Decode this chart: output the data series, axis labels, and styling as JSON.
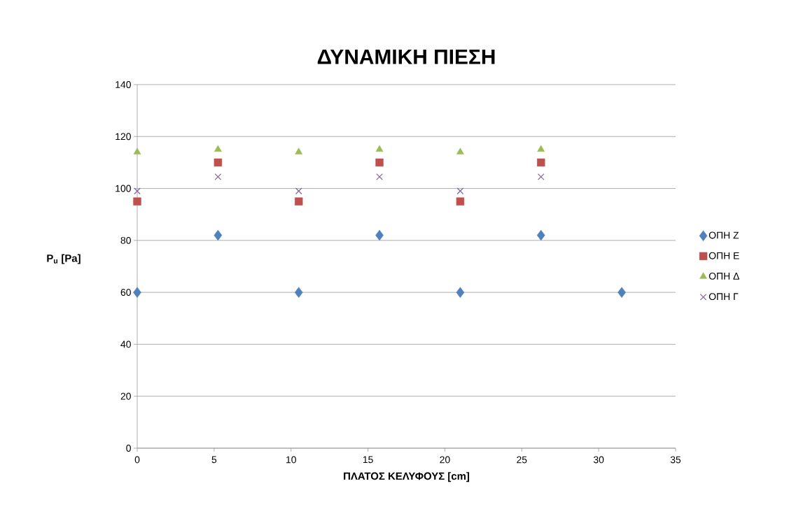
{
  "chart_data": {
    "type": "scatter",
    "title": "ΔΥΝΑΜΙΚΗ ΠΙΕΣΗ",
    "xlabel": "ΠΛΑΤΟΣ ΚΕΛΥΦΟΥΣ [cm]",
    "ylabel": "P$_{u}$ [Pa]",
    "xlim": [
      0,
      35
    ],
    "xticks": [
      0,
      5,
      10,
      15,
      20,
      25,
      30,
      35
    ],
    "ylim": [
      0,
      140
    ],
    "yticks": [
      0,
      20,
      40,
      60,
      80,
      100,
      120,
      140
    ],
    "grid": "y",
    "legend": "right",
    "series": [
      {
        "name": "ΟΠΗ Ζ",
        "color": "#4f81bd",
        "marker": "diamond",
        "x": [
          0,
          5.25,
          10.5,
          15.75,
          21,
          26.25,
          31.5
        ],
        "values": [
          60,
          82,
          60,
          82,
          60,
          82,
          60
        ]
      },
      {
        "name": "ΟΠΗ Ε",
        "color": "#c0504d",
        "marker": "square",
        "x": [
          0,
          5.25,
          10.5,
          15.75,
          21,
          26.25
        ],
        "values": [
          95,
          110,
          95,
          110,
          95,
          110
        ]
      },
      {
        "name": "ΟΠΗ Δ",
        "color": "#9bbb59",
        "marker": "triangle",
        "x": [
          0,
          5.25,
          10.5,
          15.75,
          21,
          26.25
        ],
        "values": [
          114,
          115,
          114,
          115,
          114,
          115
        ]
      },
      {
        "name": "ΟΠΗ Γ",
        "color": "#8064a2",
        "marker": "cross",
        "x": [
          0,
          5.25,
          10.5,
          15.75,
          21,
          26.25
        ],
        "values": [
          99,
          104.5,
          99,
          104.5,
          99,
          104.5
        ]
      }
    ]
  }
}
